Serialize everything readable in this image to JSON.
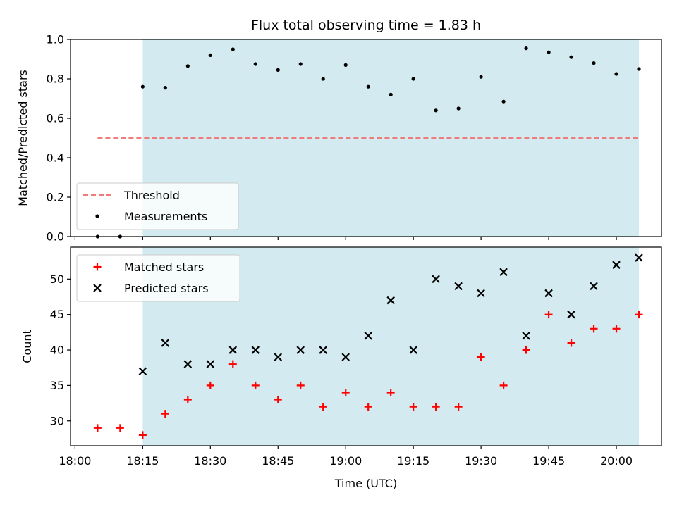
{
  "chart_data": {
    "title": "Flux total observing time = 1.83 h",
    "xlabel": "Time (UTC)",
    "x_ticks": [
      "18:00",
      "18:15",
      "18:30",
      "18:45",
      "19:00",
      "19:15",
      "19:30",
      "19:45",
      "20:00"
    ],
    "x_tick_minutes": [
      0,
      15,
      30,
      45,
      60,
      75,
      90,
      105,
      120
    ],
    "xlim_minutes": [
      -1,
      130
    ],
    "shaded_span_minutes": [
      15,
      125
    ],
    "shaded_color": "#d3eaf0",
    "panels": [
      {
        "type": "scatter",
        "ylabel": "Matched/Predicted stars",
        "ylim": [
          0,
          1
        ],
        "y_ticks": [
          "0.0",
          "0.2",
          "0.4",
          "0.6",
          "0.8",
          "1.0"
        ],
        "y_tick_values": [
          0,
          0.2,
          0.4,
          0.6,
          0.8,
          1.0
        ],
        "legend": {
          "placement": "lower-left",
          "entries": [
            "Threshold",
            "Measurements"
          ]
        },
        "threshold": {
          "name": "Threshold",
          "value": 0.5,
          "x_range_minutes": [
            5,
            125
          ],
          "color": "#f07b7b",
          "style": "dashed"
        },
        "series": [
          {
            "name": "Measurements",
            "color": "#000000",
            "marker": "dot",
            "x_minutes": [
              5,
              10,
              15,
              20,
              25,
              30,
              35,
              40,
              45,
              50,
              55,
              60,
              65,
              70,
              75,
              80,
              85,
              90,
              95,
              100,
              105,
              110,
              115,
              120,
              125
            ],
            "values": [
              0.0,
              0.0,
              0.76,
              0.755,
              0.865,
              0.92,
              0.95,
              0.875,
              0.845,
              0.875,
              0.8,
              0.87,
              0.76,
              0.72,
              0.8,
              0.64,
              0.65,
              0.81,
              0.685,
              0.955,
              0.935,
              0.91,
              0.88,
              0.825,
              0.85
            ]
          }
        ]
      },
      {
        "type": "scatter",
        "ylabel": "Count",
        "ylim": [
          26.5,
          54.5
        ],
        "y_ticks": [
          "30",
          "35",
          "40",
          "45",
          "50"
        ],
        "y_tick_values": [
          30,
          35,
          40,
          45,
          50
        ],
        "legend": {
          "placement": "upper-left",
          "entries": [
            "Matched stars",
            "Predicted stars"
          ]
        },
        "series": [
          {
            "name": "Matched stars",
            "color": "#ff0000",
            "marker": "plus",
            "x_minutes": [
              5,
              10,
              15,
              20,
              25,
              30,
              35,
              40,
              45,
              50,
              55,
              60,
              65,
              70,
              75,
              80,
              85,
              90,
              95,
              100,
              105,
              110,
              115,
              120,
              125
            ],
            "values": [
              29,
              29,
              28,
              31,
              33,
              35,
              38,
              35,
              33,
              35,
              32,
              34,
              32,
              34,
              32,
              32,
              32,
              39,
              35,
              40,
              45,
              41,
              43,
              43,
              45
            ]
          },
          {
            "name": "Predicted stars",
            "color": "#000000",
            "marker": "x",
            "x_minutes": [
              15,
              20,
              25,
              30,
              35,
              40,
              45,
              50,
              55,
              60,
              65,
              70,
              75,
              80,
              85,
              90,
              95,
              100,
              105,
              110,
              115,
              120,
              125
            ],
            "values": [
              37,
              41,
              38,
              38,
              40,
              40,
              39,
              40,
              40,
              39,
              42,
              47,
              40,
              50,
              49,
              48,
              51,
              42,
              48,
              45,
              49,
              52,
              53
            ]
          }
        ]
      }
    ]
  }
}
